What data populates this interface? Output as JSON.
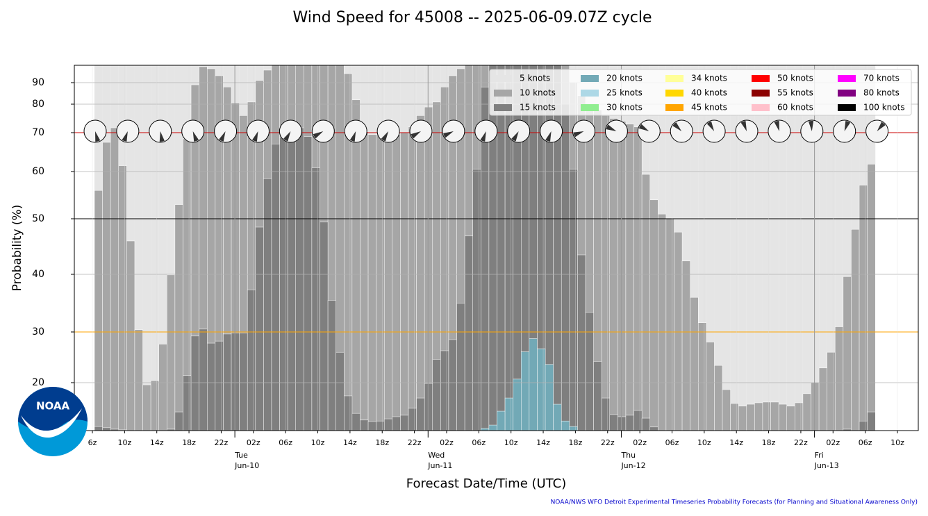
{
  "chart_data": {
    "type": "bar",
    "title": "Wind Speed for 45008 -- 2025-06-09.07Z cycle",
    "xlabel": "Forecast Date/Time (UTC)",
    "ylabel": "Probability (%)",
    "footer": "NOAA/NWS WFO Detroit Experimental Timeseries Probability Forecasts (for Planning and Situational Awareness Only)",
    "logo_text": "NOAA",
    "categories": [
      "6z",
      null,
      null,
      null,
      "10z",
      null,
      null,
      null,
      "14z",
      null,
      null,
      null,
      "18z",
      null,
      null,
      null,
      "22z",
      null,
      null,
      null,
      "02z",
      null,
      null,
      null,
      "06z",
      null,
      null,
      null,
      "10z",
      null,
      null,
      null,
      "14z",
      null,
      null,
      null,
      "18z",
      null,
      null,
      null,
      "22z",
      null,
      null,
      null,
      "02z",
      null,
      null,
      null,
      "06z",
      null,
      null,
      null,
      "10z",
      null,
      null,
      null,
      "14z",
      null,
      null,
      null,
      "18z",
      null,
      null,
      null,
      "22z",
      null,
      null,
      null,
      "02z",
      null,
      null,
      null,
      "06z",
      null,
      null,
      null,
      "10z",
      null,
      null,
      null,
      "14z",
      null,
      null,
      null,
      "18z",
      null,
      null,
      null,
      "22z",
      null,
      null,
      null,
      "02z",
      null,
      null,
      null,
      "06z",
      null,
      null,
      null,
      "10z"
    ],
    "day_labels": [
      [
        "Tue",
        "Jun-10"
      ],
      [
        "Wed",
        "Jun-11"
      ],
      [
        "Thu",
        "Jun-12"
      ],
      [
        "Fri",
        "Jun-13"
      ]
    ],
    "ylim": [
      0,
      95
    ],
    "yticks": [
      20,
      30,
      40,
      50,
      60,
      70,
      80,
      90
    ],
    "grid": true,
    "hlines": [
      {
        "value": 70,
        "color": "#cc0000"
      },
      {
        "value": 50,
        "color": "#000000"
      },
      {
        "value": 30,
        "color": "#ffa500"
      }
    ],
    "legend_position": "upper right",
    "series": [
      {
        "name": "5 knots",
        "color": "#e5e5e5",
        "values": [
          null,
          100,
          100,
          100,
          100,
          100,
          100,
          100,
          100,
          100,
          100,
          100,
          100,
          100,
          100,
          100,
          100,
          100,
          100,
          100,
          100,
          100,
          100,
          100,
          100,
          100,
          100,
          100,
          100,
          100,
          100,
          100,
          100,
          100,
          100,
          100,
          100,
          100,
          100,
          100,
          100,
          100,
          100,
          100,
          100,
          100,
          100,
          100,
          100,
          100,
          100,
          100,
          100,
          100,
          100,
          100,
          100,
          100,
          100,
          100,
          100,
          100,
          100,
          100,
          100,
          100,
          100,
          100,
          100,
          100,
          100,
          100,
          100,
          100,
          100,
          100,
          100,
          100,
          100,
          100,
          100,
          100,
          100,
          100,
          100,
          100,
          100,
          100,
          100,
          100,
          100,
          100,
          100,
          100,
          100,
          100,
          100,
          100,
          null,
          null,
          null
        ]
      },
      {
        "name": "10 knots",
        "color": "#a6a6a6",
        "values": [
          null,
          56,
          67.5,
          71.7,
          61.5,
          46,
          30.4,
          19.1,
          20.4,
          27.6,
          39.9,
          53,
          68.4,
          89,
          94.6,
          94,
          92,
          88,
          80.6,
          76,
          81,
          90.6,
          93.6,
          97,
          97,
          97,
          97,
          97,
          97,
          97,
          97,
          97,
          92.6,
          82,
          70.3,
          69.5,
          69.5,
          69.3,
          69.5,
          70,
          72,
          76,
          79,
          81,
          88,
          92,
          94,
          96,
          97,
          97,
          97,
          97,
          97,
          97,
          97,
          97,
          97,
          97,
          97,
          97,
          90,
          84,
          80,
          78,
          76,
          75,
          74,
          73,
          72,
          59.4,
          54,
          51,
          50,
          47.6,
          42.4,
          36,
          31.6,
          28,
          23.4,
          17.1,
          11.3,
          10.2,
          11,
          11.6,
          11.9,
          11.9,
          11,
          10.2,
          11.6,
          15.4,
          20.1,
          22.9,
          26,
          30.9,
          39.6,
          48.1,
          57.1,
          61.9,
          null,
          null,
          null
        ]
      },
      {
        "name": "15 knots",
        "color": "#7f7f7f",
        "values": [
          null,
          1.7,
          1.2,
          0.6,
          0.3,
          0,
          0,
          0,
          0,
          0,
          0.6,
          7.8,
          21.4,
          29.2,
          30.5,
          27.8,
          28.2,
          29.6,
          29.8,
          29.8,
          37.3,
          48.5,
          58.5,
          67.1,
          68.8,
          71.7,
          71.7,
          69,
          61,
          49.4,
          35.5,
          26,
          14.5,
          7.2,
          4.4,
          3.8,
          4,
          4.9,
          5.8,
          6.4,
          9.3,
          13.6,
          19.7,
          24.6,
          26.3,
          28.5,
          35,
          46.9,
          60.6,
          88,
          97,
          97,
          97,
          97,
          97,
          97,
          97,
          97,
          95,
          80,
          60.6,
          43.5,
          33.4,
          24.2,
          13.6,
          6.7,
          5.8,
          6.4,
          8.4,
          5.2,
          1.5,
          0,
          0,
          0,
          0,
          0,
          0,
          0,
          0,
          0,
          0,
          0,
          0,
          0,
          0,
          0,
          0,
          0,
          0,
          0,
          0,
          0,
          0,
          0,
          0.6,
          0,
          4,
          7.8,
          null,
          null,
          null
        ]
      },
      {
        "name": "20 knots",
        "color": "#72a9b6",
        "values": [
          null,
          0,
          0,
          0,
          0,
          0,
          0,
          0,
          0,
          0,
          0,
          0,
          0,
          0,
          0,
          0,
          0,
          0,
          0,
          0,
          0,
          0,
          0,
          0,
          0,
          0,
          0,
          0,
          0,
          0,
          0,
          0,
          0,
          0,
          0,
          0,
          0,
          0,
          0,
          0,
          0,
          0,
          0,
          0,
          0,
          0,
          0,
          0,
          0,
          0.9,
          2.3,
          8.1,
          13.6,
          20.7,
          26.1,
          28.7,
          26.7,
          23.6,
          11,
          4,
          1.7,
          0,
          0,
          0,
          0,
          0,
          0,
          0,
          0,
          0,
          0,
          0,
          0,
          0,
          0,
          0,
          0,
          0,
          0,
          0,
          0,
          0,
          0,
          0,
          0,
          0,
          0,
          0,
          0,
          0,
          0,
          0,
          0,
          0,
          0,
          0,
          0,
          0,
          null,
          null,
          null
        ]
      },
      {
        "name": "25 knots",
        "color": "#add8e6"
      },
      {
        "name": "30 knots",
        "color": "#90ee90"
      },
      {
        "name": "34 knots",
        "color": "#ffff99"
      },
      {
        "name": "40 knots",
        "color": "#ffd700"
      },
      {
        "name": "45 knots",
        "color": "#ffa500"
      },
      {
        "name": "50 knots",
        "color": "#ff0000"
      },
      {
        "name": "55 knots",
        "color": "#8b0000"
      },
      {
        "name": "60 knots",
        "color": "#ffc0cb"
      },
      {
        "name": "70 knots",
        "color": "#ff00ff"
      },
      {
        "name": "80 knots",
        "color": "#800080"
      },
      {
        "name": "100 knots",
        "color": "#000000"
      }
    ],
    "wind_dir": [
      165,
      200,
      170,
      160,
      205,
      200,
      210,
      240,
      200,
      210,
      240,
      245,
      200,
      210,
      200,
      250,
      295,
      300,
      315,
      330,
      340,
      345,
      355,
      20,
      40
    ]
  }
}
